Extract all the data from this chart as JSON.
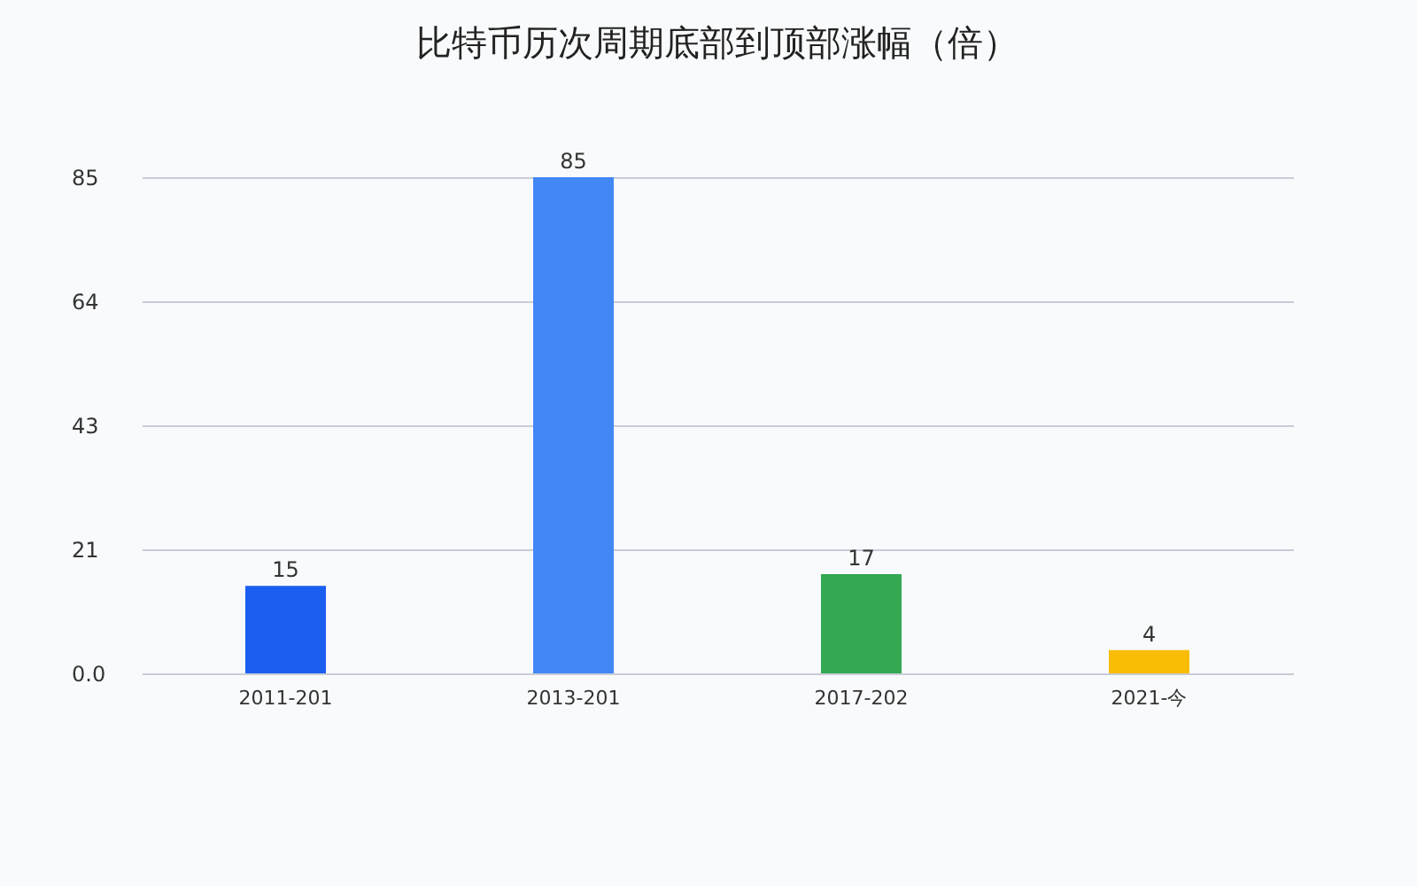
{
  "chart_data": {
    "type": "bar",
    "title": "比特币历次周期底部到顶部涨幅（倍）",
    "categories": [
      "2011-201",
      "2013-201",
      "2017-202",
      "2021-今"
    ],
    "values": [
      15,
      85,
      17,
      4
    ],
    "colors": [
      "#1a5ff0",
      "#4287f5",
      "#34a853",
      "#fbbc05"
    ],
    "ylim": [
      0,
      85
    ],
    "yticks": [
      {
        "value": 0,
        "label": "0.0"
      },
      {
        "value": 21.25,
        "label": "21"
      },
      {
        "value": 42.5,
        "label": "43"
      },
      {
        "value": 63.75,
        "label": "64"
      },
      85
    ],
    "grid": "y",
    "data_labels": true
  }
}
